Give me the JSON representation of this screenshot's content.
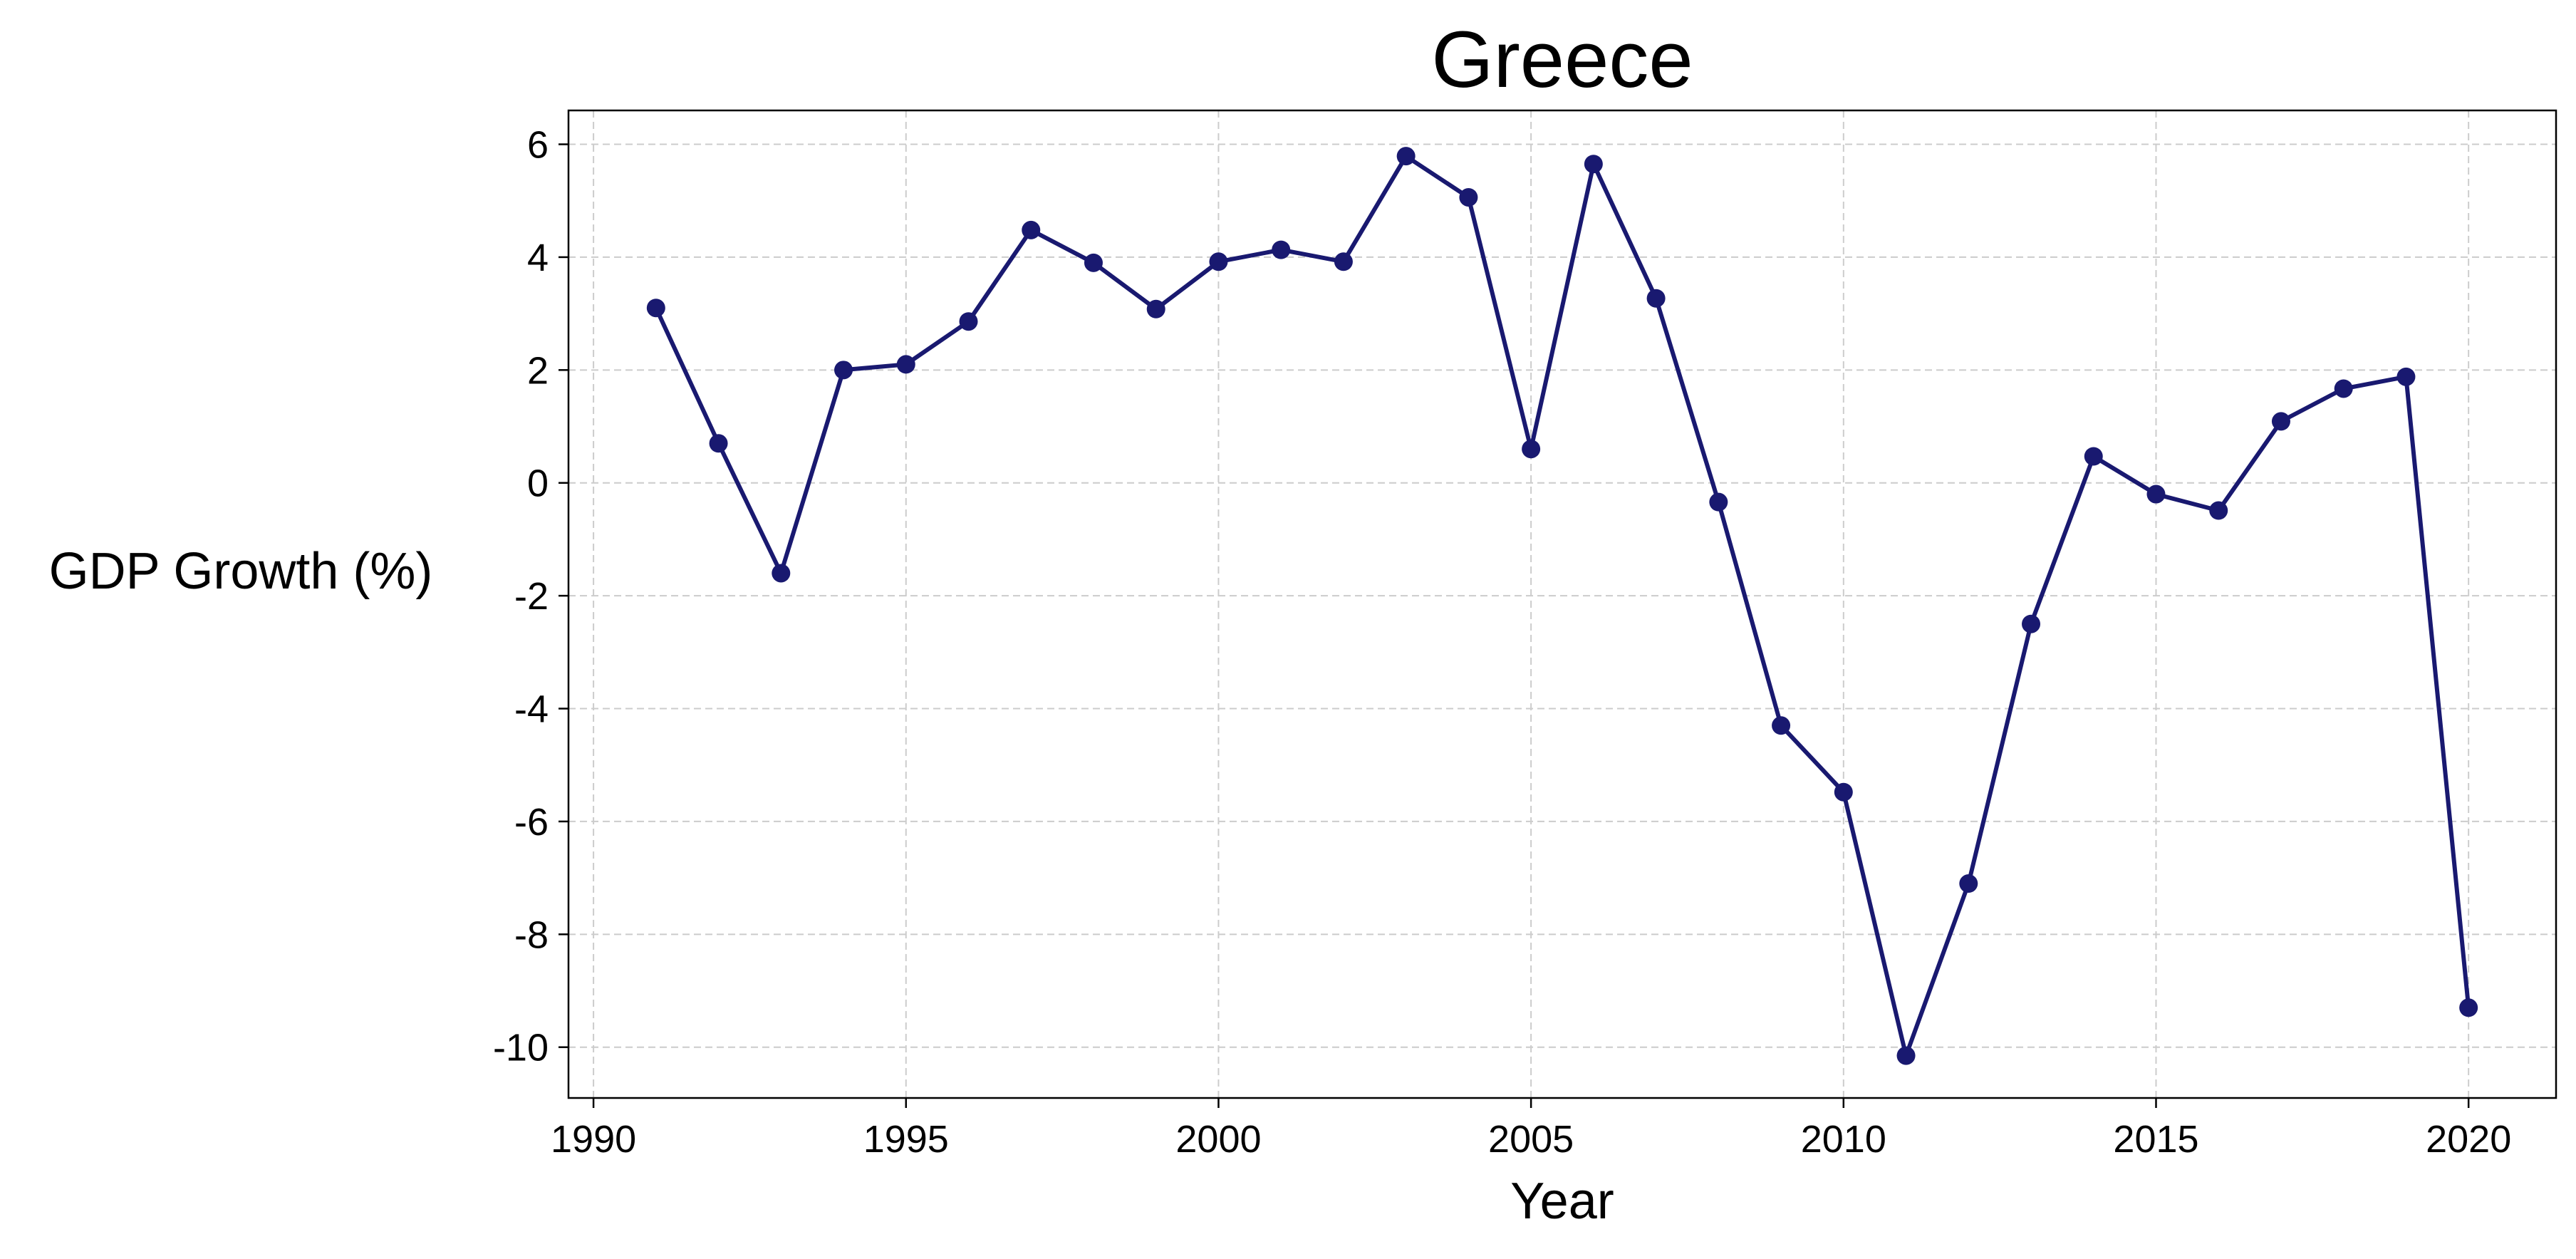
{
  "chart_data": {
    "type": "line",
    "title": "Greece",
    "xlabel": "Year",
    "ylabel": "GDP Growth (%)",
    "xlim": [
      1989.6,
      2021.4
    ],
    "ylim": [
      -10.9,
      6.6
    ],
    "xticks": [
      1990,
      1995,
      2000,
      2005,
      2010,
      2015,
      2020
    ],
    "yticks": [
      -10,
      -8,
      -6,
      -4,
      -2,
      0,
      2,
      4,
      6
    ],
    "grid": true,
    "legend": "none",
    "colors": {
      "line": "#191970",
      "grid": "#cccccc",
      "axes": "#000000"
    },
    "series": [
      {
        "x": [
          1991,
          1992,
          1993,
          1994,
          1995,
          1996,
          1997,
          1998,
          1999,
          2000,
          2001,
          2002,
          2003,
          2004,
          2005,
          2006,
          2007,
          2008,
          2009,
          2010,
          2011,
          2012,
          2013,
          2014,
          2015,
          2016,
          2017,
          2018,
          2019,
          2020
        ],
        "values": [
          3.1,
          0.7,
          -1.6,
          2.0,
          2.1,
          2.86,
          4.48,
          3.9,
          3.08,
          3.92,
          4.13,
          3.92,
          5.79,
          5.06,
          0.6,
          5.65,
          3.27,
          -0.34,
          -4.3,
          -5.48,
          -10.15,
          -7.1,
          -2.5,
          0.47,
          -0.2,
          -0.49,
          1.09,
          1.67,
          1.88,
          -9.3
        ]
      }
    ]
  }
}
